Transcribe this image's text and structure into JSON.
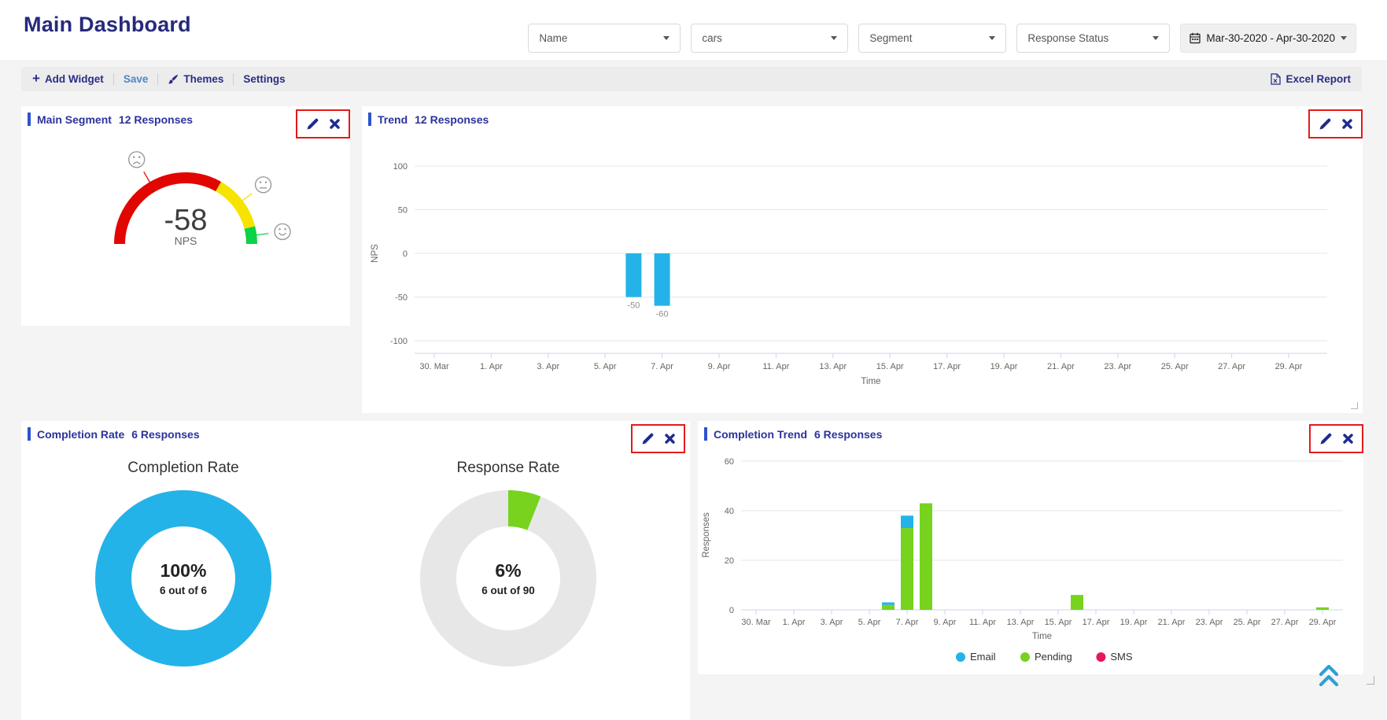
{
  "header": {
    "title": "Main Dashboard"
  },
  "filters": [
    {
      "id": "name",
      "value": "Name"
    },
    {
      "id": "survey",
      "value": "cars"
    },
    {
      "id": "segment",
      "value": "Segment"
    },
    {
      "id": "response_status",
      "value": "Response Status"
    }
  ],
  "date_range": {
    "value": "Mar-30-2020 - Apr-30-2020"
  },
  "toolbar": {
    "add_widget": "Add Widget",
    "save": "Save",
    "themes": "Themes",
    "settings": "Settings",
    "excel_report": "Excel Report"
  },
  "widgets": {
    "main_segment": {
      "title": "Main Segment",
      "responses": "12 Responses"
    },
    "trend": {
      "title": "Trend",
      "responses": "12 Responses"
    },
    "completion_rate": {
      "title": "Completion Rate",
      "responses": "6 Responses"
    },
    "completion_trend": {
      "title": "Completion Trend",
      "responses": "6 Responses"
    }
  },
  "chart_data": [
    {
      "id": "nps-gauge",
      "type": "gauge",
      "widget": "Main Segment",
      "value": -58,
      "unit_label": "NPS",
      "min": -100,
      "max": 100,
      "bands": [
        {
          "from": -100,
          "to": 33,
          "color": "#e10600",
          "face": "sad"
        },
        {
          "from": 33,
          "to": 84,
          "color": "#f6e400",
          "face": "neutral"
        },
        {
          "from": 84,
          "to": 100,
          "color": "#0bd246",
          "face": "happy"
        }
      ]
    },
    {
      "id": "nps-trend",
      "type": "bar",
      "widget": "Trend",
      "xlabel": "Time",
      "ylabel": "NPS",
      "ylim": [
        -100,
        100
      ],
      "yticks": [
        100,
        50,
        0,
        -50,
        -100
      ],
      "x_ticks": [
        "30. Mar",
        "1. Apr",
        "3. Apr",
        "5. Apr",
        "7. Apr",
        "9. Apr",
        "11. Apr",
        "13. Apr",
        "15. Apr",
        "17. Apr",
        "19. Apr",
        "21. Apr",
        "23. Apr",
        "25. Apr",
        "27. Apr",
        "29. Apr"
      ],
      "color": "#24b3e8",
      "points": [
        {
          "date": "6. Apr",
          "day": 7,
          "value": -50
        },
        {
          "date": "7. Apr",
          "day": 8,
          "value": -60
        }
      ]
    },
    {
      "id": "completion-donuts",
      "type": "pie",
      "subtype": "donut",
      "widget": "Completion Rate",
      "donuts": [
        {
          "title": "Completion Rate",
          "percent": 100,
          "value_text": "100%",
          "sub_text": "6 out of 6",
          "color": "#24b3e8",
          "track_color": "#e7e7e7"
        },
        {
          "title": "Response Rate",
          "percent": 6,
          "value_text": "6%",
          "sub_text": "6 out of 90",
          "color": "#77d31d",
          "track_color": "#e7e7e7"
        }
      ]
    },
    {
      "id": "completion-trend",
      "type": "bar",
      "stacked": true,
      "widget": "Completion Trend",
      "xlabel": "Time",
      "ylabel": "Responses",
      "ylim": [
        0,
        60
      ],
      "yticks": [
        60,
        40,
        20,
        0
      ],
      "x_ticks": [
        "30. Mar",
        "1. Apr",
        "3. Apr",
        "5. Apr",
        "7. Apr",
        "9. Apr",
        "11. Apr",
        "13. Apr",
        "15. Apr",
        "17. Apr",
        "19. Apr",
        "21. Apr",
        "23. Apr",
        "25. Apr",
        "27. Apr",
        "29. Apr"
      ],
      "legend": [
        {
          "name": "Email",
          "color": "#24b3e8"
        },
        {
          "name": "Pending",
          "color": "#77d31d"
        },
        {
          "name": "SMS",
          "color": "#e81758"
        }
      ],
      "stack_order": [
        "Pending",
        "Email",
        "SMS"
      ],
      "bars": [
        {
          "date": "6. Apr",
          "day": 7,
          "values": {
            "Pending": 2,
            "Email": 1
          }
        },
        {
          "date": "7. Apr",
          "day": 8,
          "values": {
            "Pending": 33,
            "Email": 5
          }
        },
        {
          "date": "8. Apr",
          "day": 9,
          "values": {
            "Pending": 43
          }
        },
        {
          "date": "16. Apr",
          "day": 17,
          "values": {
            "Pending": 6
          }
        },
        {
          "date": "29. Apr",
          "day": 30,
          "values": {
            "Pending": 1
          }
        }
      ]
    }
  ]
}
